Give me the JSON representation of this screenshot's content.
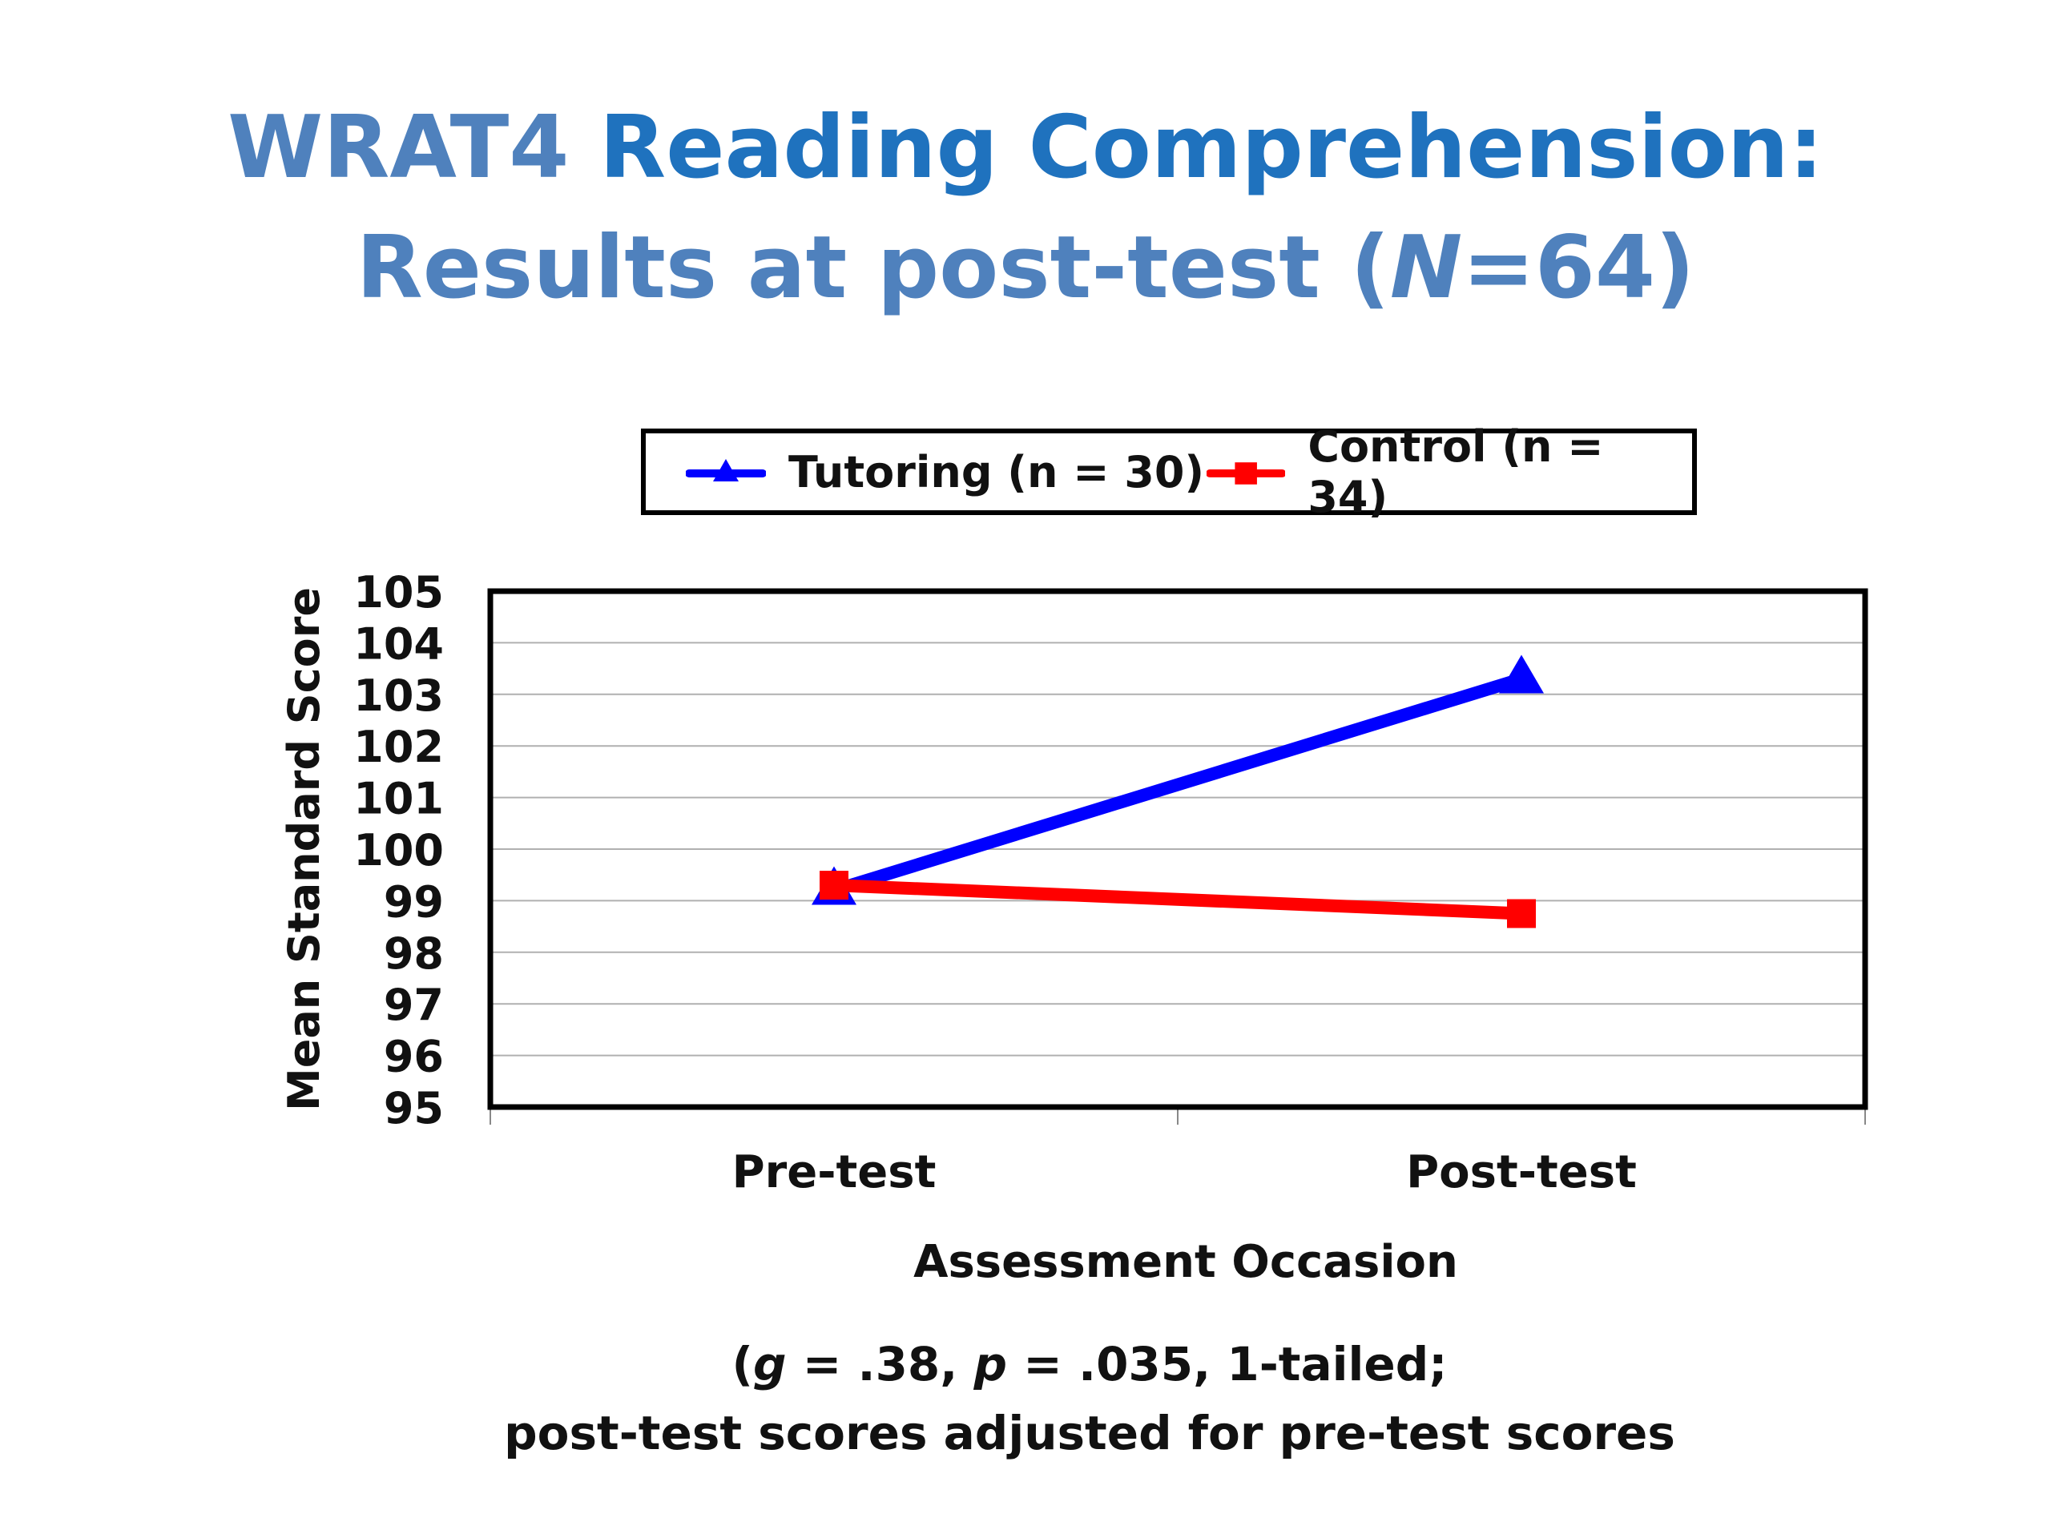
{
  "title": {
    "line1_part1": "WRAT4",
    "line1_part2": " Reading Comprehension:",
    "line2_part1": "Results at post-test (",
    "line2_n": "N",
    "line2_part2": "=64)"
  },
  "footnote": {
    "open": "(",
    "g_symbol": "g",
    "g_text": " = .38, ",
    "p_symbol": "p",
    "p_text": " = .035, 1-tailed;",
    "line2": "post-test scores adjusted for pre-test scores"
  },
  "colors": {
    "tutoring": "#0000ff",
    "control": "#ff0000",
    "title_dark": "#1f72be",
    "title_light": "#4f81bd"
  },
  "chart_data": {
    "type": "line",
    "categories": [
      "Pre-test",
      "Post-test"
    ],
    "series": [
      {
        "name": "Tutoring (n = 30)",
        "values": [
          99.2,
          103.3
        ],
        "color": "#0000ff",
        "marker": "triangle"
      },
      {
        "name": "Control (n = 34)",
        "values": [
          99.3,
          98.75
        ],
        "color": "#ff0000",
        "marker": "square"
      }
    ],
    "xlabel": "Assessment Occasion",
    "ylabel": "Mean Standard Score",
    "ylim": [
      95,
      105
    ],
    "yticks": [
      "95",
      "96",
      "97",
      "98",
      "99",
      "100",
      "101",
      "102",
      "103",
      "104",
      "105"
    ],
    "grid": true,
    "legend": "top"
  }
}
